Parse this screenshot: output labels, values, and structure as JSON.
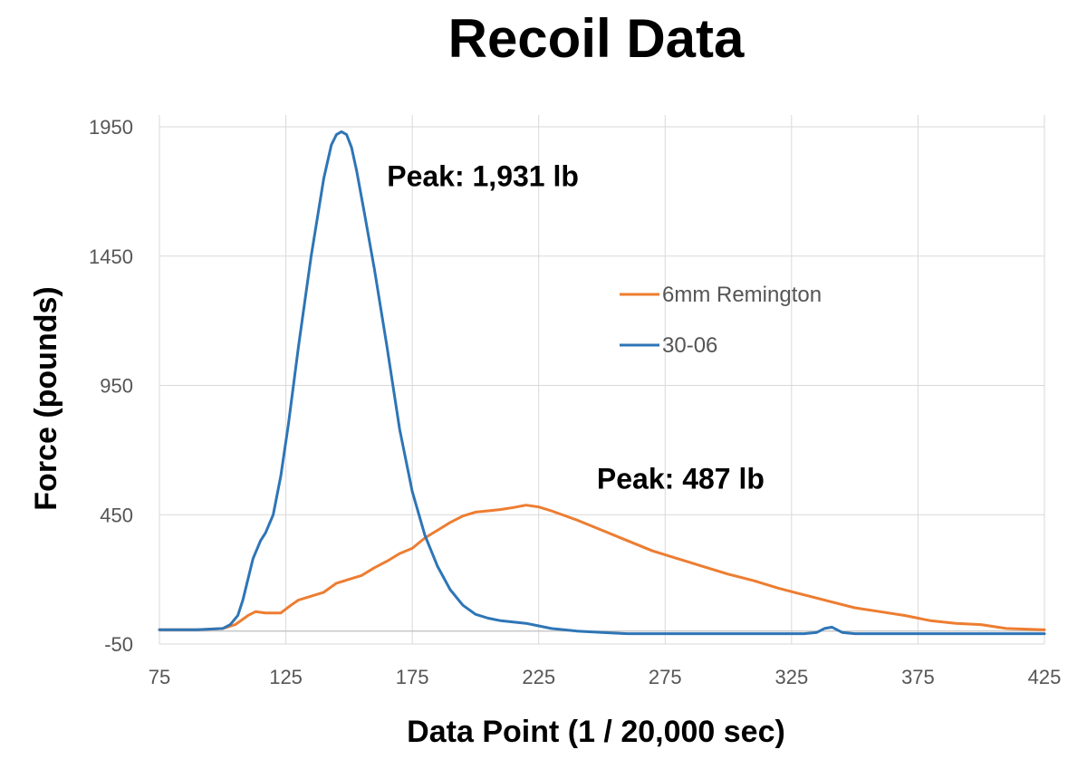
{
  "chart_data": {
    "type": "line",
    "title": "Recoil Data",
    "xlabel": "Data Point (1 / 20,000 sec)",
    "ylabel": "Force (pounds)",
    "xlim": [
      75,
      425
    ],
    "ylim": [
      -50,
      1950
    ],
    "xticks": [
      75,
      125,
      175,
      225,
      275,
      325,
      375,
      425
    ],
    "yticks": [
      -50,
      450,
      950,
      1450,
      1950
    ],
    "grid": true,
    "legend_position": "center-right",
    "series": [
      {
        "name": "6mm Remington",
        "color": "#ed7d31",
        "x": [
          75,
          90,
          100,
          105,
          110,
          113,
          117,
          123,
          127,
          130,
          135,
          140,
          145,
          150,
          155,
          160,
          165,
          170,
          175,
          180,
          185,
          190,
          195,
          200,
          205,
          210,
          215,
          220,
          225,
          230,
          240,
          250,
          260,
          270,
          280,
          290,
          300,
          310,
          320,
          330,
          340,
          350,
          360,
          370,
          380,
          390,
          400,
          410,
          425
        ],
        "y": [
          5,
          5,
          10,
          25,
          60,
          75,
          70,
          70,
          100,
          120,
          135,
          150,
          185,
          200,
          215,
          245,
          270,
          300,
          320,
          360,
          390,
          420,
          445,
          460,
          465,
          470,
          478,
          487,
          480,
          465,
          430,
          390,
          350,
          310,
          280,
          250,
          220,
          195,
          165,
          140,
          115,
          90,
          75,
          60,
          40,
          30,
          25,
          10,
          5
        ]
      },
      {
        "name": "30-06",
        "color": "#2e75b6",
        "x": [
          75,
          90,
          100,
          103,
          106,
          108,
          110,
          112,
          115,
          117,
          120,
          123,
          126,
          130,
          135,
          140,
          143,
          145,
          147,
          149,
          151,
          153,
          156,
          160,
          165,
          170,
          175,
          180,
          185,
          190,
          195,
          200,
          205,
          210,
          215,
          220,
          225,
          230,
          240,
          250,
          260,
          270,
          280,
          290,
          300,
          310,
          320,
          330,
          335,
          338,
          341,
          345,
          350,
          360,
          380,
          400,
          425
        ],
        "y": [
          5,
          5,
          10,
          25,
          60,
          120,
          200,
          280,
          350,
          380,
          450,
          600,
          800,
          1100,
          1450,
          1750,
          1880,
          1920,
          1931,
          1920,
          1870,
          1780,
          1620,
          1400,
          1100,
          780,
          540,
          370,
          250,
          160,
          100,
          65,
          50,
          40,
          35,
          30,
          20,
          10,
          0,
          -5,
          -10,
          -10,
          -10,
          -10,
          -10,
          -10,
          -10,
          -10,
          -5,
          10,
          15,
          -5,
          -10,
          -10,
          -10,
          -10,
          -10
        ]
      }
    ],
    "annotations": [
      {
        "text": "Peak: 1,931 lb",
        "x": 165,
        "y": 1720
      },
      {
        "text": "Peak: 487 lb",
        "x": 248,
        "y": 550
      }
    ]
  }
}
